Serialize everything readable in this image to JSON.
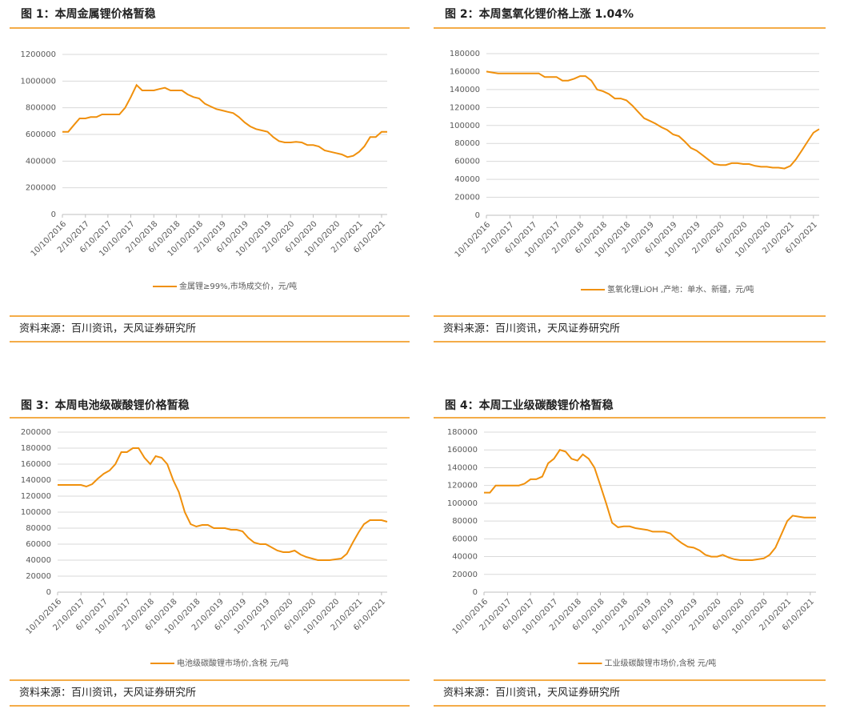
{
  "chart_data": [
    {
      "type": "line",
      "title": "图 1：本周金属锂价格暂稳",
      "source": "资料来源：百川资讯，天风证券研究所",
      "x": [
        "10/10/2016",
        "11/10/2016",
        "12/10/2016",
        "1/10/2017",
        "2/10/2017",
        "3/10/2017",
        "4/10/2017",
        "5/10/2017",
        "6/10/2017",
        "7/10/2017",
        "8/10/2017",
        "9/10/2017",
        "10/10/2017",
        "11/10/2017",
        "12/10/2017",
        "1/10/2018",
        "2/10/2018",
        "3/10/2018",
        "4/10/2018",
        "5/10/2018",
        "6/10/2018",
        "7/10/2018",
        "8/10/2018",
        "9/10/2018",
        "10/10/2018",
        "11/10/2018",
        "12/10/2018",
        "1/10/2019",
        "2/10/2019",
        "3/10/2019",
        "4/10/2019",
        "5/10/2019",
        "6/10/2019",
        "7/10/2019",
        "8/10/2019",
        "9/10/2019",
        "10/10/2019",
        "11/10/2019",
        "12/10/2019",
        "1/10/2020",
        "2/10/2020",
        "3/10/2020",
        "4/10/2020",
        "5/10/2020",
        "6/10/2020",
        "7/10/2020",
        "8/10/2020",
        "9/10/2020",
        "10/10/2020",
        "11/10/2020",
        "12/10/2020",
        "1/10/2021",
        "2/10/2021",
        "3/10/2021",
        "4/10/2021",
        "5/10/2021",
        "6/10/2021",
        "7/10/2021"
      ],
      "series": [
        {
          "name": "金属锂≥99%,市场成交价，元/吨",
          "color": "#f0900c",
          "values": [
            620000,
            620000,
            670000,
            720000,
            720000,
            730000,
            730000,
            750000,
            750000,
            750000,
            750000,
            800000,
            880000,
            970000,
            930000,
            930000,
            930000,
            940000,
            950000,
            930000,
            930000,
            930000,
            900000,
            880000,
            870000,
            830000,
            810000,
            790000,
            780000,
            770000,
            760000,
            730000,
            690000,
            660000,
            640000,
            630000,
            620000,
            580000,
            550000,
            540000,
            540000,
            545000,
            540000,
            520000,
            520000,
            510000,
            480000,
            470000,
            460000,
            450000,
            430000,
            440000,
            470000,
            510000,
            580000,
            580000,
            620000,
            620000
          ]
        }
      ],
      "xlim": [
        "10/10/2016",
        "7/10/2021"
      ],
      "xticks": [
        "10/10/2016",
        "2/10/2017",
        "6/10/2017",
        "10/10/2017",
        "2/10/2018",
        "6/10/2018",
        "10/10/2018",
        "2/10/2019",
        "6/10/2019",
        "10/10/2019",
        "2/10/2020",
        "6/10/2020",
        "10/10/2020",
        "2/10/2021",
        "6/10/2021"
      ],
      "ylim": [
        0,
        1200000
      ],
      "yticks": [
        0,
        200000,
        400000,
        600000,
        800000,
        1000000,
        1200000
      ],
      "grid": true
    },
    {
      "type": "line",
      "title": "图 2：本周氢氧化锂价格上涨 1.04%",
      "source": "资料来源：百川资讯，天风证券研究所",
      "x": [
        "10/10/2016",
        "11/10/2016",
        "12/10/2016",
        "1/10/2017",
        "2/10/2017",
        "3/10/2017",
        "4/10/2017",
        "5/10/2017",
        "6/10/2017",
        "7/10/2017",
        "8/10/2017",
        "9/10/2017",
        "10/10/2017",
        "11/10/2017",
        "12/10/2017",
        "1/10/2018",
        "2/10/2018",
        "3/10/2018",
        "4/10/2018",
        "5/10/2018",
        "6/10/2018",
        "7/10/2018",
        "8/10/2018",
        "9/10/2018",
        "10/10/2018",
        "11/10/2018",
        "12/10/2018",
        "1/10/2019",
        "2/10/2019",
        "3/10/2019",
        "4/10/2019",
        "5/10/2019",
        "6/10/2019",
        "7/10/2019",
        "8/10/2019",
        "9/10/2019",
        "10/10/2019",
        "11/10/2019",
        "12/10/2019",
        "1/10/2020",
        "2/10/2020",
        "3/10/2020",
        "4/10/2020",
        "5/10/2020",
        "6/10/2020",
        "7/10/2020",
        "8/10/2020",
        "9/10/2020",
        "10/10/2020",
        "11/10/2020",
        "12/10/2020",
        "1/10/2021",
        "2/10/2021",
        "3/10/2021",
        "4/10/2021",
        "5/10/2021",
        "6/10/2021",
        "7/10/2021"
      ],
      "series": [
        {
          "name": "氢氧化锂LiOH ,产地：单水、新疆，元/吨",
          "color": "#f0900c",
          "values": [
            160000,
            159000,
            158000,
            158000,
            158000,
            158000,
            158000,
            158000,
            158000,
            158000,
            154000,
            154000,
            154000,
            150000,
            150000,
            152000,
            155000,
            155000,
            150000,
            140000,
            138000,
            135000,
            130000,
            130000,
            128000,
            122000,
            115000,
            108000,
            105000,
            102000,
            98000,
            95000,
            90000,
            88000,
            82000,
            75000,
            72000,
            67000,
            62000,
            57000,
            56000,
            56000,
            58000,
            58000,
            57000,
            57000,
            55000,
            54000,
            54000,
            53000,
            53000,
            52000,
            55000,
            62000,
            72000,
            82000,
            92000,
            96000
          ]
        }
      ],
      "xlim": [
        "10/10/2016",
        "7/10/2021"
      ],
      "xticks": [
        "10/10/2016",
        "2/10/2017",
        "6/10/2017",
        "10/10/2017",
        "2/10/2018",
        "6/10/2018",
        "10/10/2018",
        "2/10/2019",
        "6/10/2019",
        "10/10/2019",
        "2/10/2020",
        "6/10/2020",
        "10/10/2020",
        "2/10/2021",
        "6/10/2021"
      ],
      "ylim": [
        0,
        180000
      ],
      "yticks": [
        0,
        20000,
        40000,
        60000,
        80000,
        100000,
        120000,
        140000,
        160000,
        180000
      ],
      "grid": true
    },
    {
      "type": "line",
      "title": "图 3：本周电池级碳酸锂价格暂稳",
      "source": "资料来源：百川资讯，天风证券研究所",
      "x": [
        "10/10/2016",
        "11/10/2016",
        "12/10/2016",
        "1/10/2017",
        "2/10/2017",
        "3/10/2017",
        "4/10/2017",
        "5/10/2017",
        "6/10/2017",
        "7/10/2017",
        "8/10/2017",
        "9/10/2017",
        "10/10/2017",
        "11/10/2017",
        "12/10/2017",
        "1/10/2018",
        "2/10/2018",
        "3/10/2018",
        "4/10/2018",
        "5/10/2018",
        "6/10/2018",
        "7/10/2018",
        "8/10/2018",
        "9/10/2018",
        "10/10/2018",
        "11/10/2018",
        "12/10/2018",
        "1/10/2019",
        "2/10/2019",
        "3/10/2019",
        "4/10/2019",
        "5/10/2019",
        "6/10/2019",
        "7/10/2019",
        "8/10/2019",
        "9/10/2019",
        "10/10/2019",
        "11/10/2019",
        "12/10/2019",
        "1/10/2020",
        "2/10/2020",
        "3/10/2020",
        "4/10/2020",
        "5/10/2020",
        "6/10/2020",
        "7/10/2020",
        "8/10/2020",
        "9/10/2020",
        "10/10/2020",
        "11/10/2020",
        "12/10/2020",
        "1/10/2021",
        "2/10/2021",
        "3/10/2021",
        "4/10/2021",
        "5/10/2021",
        "6/10/2021",
        "7/10/2021"
      ],
      "series": [
        {
          "name": "电池级碳酸锂市场价,含税 元/吨",
          "color": "#f0900c",
          "values": [
            134000,
            134000,
            134000,
            134000,
            134000,
            132000,
            135000,
            142000,
            148000,
            152000,
            160000,
            175000,
            175000,
            180000,
            180000,
            168000,
            160000,
            170000,
            168000,
            160000,
            140000,
            125000,
            100000,
            85000,
            82000,
            84000,
            84000,
            80000,
            80000,
            80000,
            78000,
            78000,
            76000,
            68000,
            62000,
            60000,
            60000,
            56000,
            52000,
            50000,
            50000,
            52000,
            47000,
            44000,
            42000,
            40000,
            40000,
            40000,
            41000,
            42000,
            48000,
            62000,
            75000,
            85000,
            90000,
            90000,
            90000,
            88000
          ]
        }
      ],
      "xlim": [
        "10/10/2016",
        "7/10/2021"
      ],
      "xticks": [
        "10/10/2016",
        "2/10/2017",
        "6/10/2017",
        "10/10/2017",
        "2/10/2018",
        "6/10/2018",
        "10/10/2018",
        "2/10/2019",
        "6/10/2019",
        "10/10/2019",
        "2/10/2020",
        "6/10/2020",
        "10/10/2020",
        "2/10/2021",
        "6/10/2021"
      ],
      "ylim": [
        0,
        200000
      ],
      "yticks": [
        0,
        20000,
        40000,
        60000,
        80000,
        100000,
        120000,
        140000,
        160000,
        180000,
        200000
      ],
      "grid": true
    },
    {
      "type": "line",
      "title": "图 4：本周工业级碳酸锂价格暂稳",
      "source": "资料来源：百川资讯，天风证券研究所",
      "x": [
        "10/10/2016",
        "11/10/2016",
        "12/10/2016",
        "1/10/2017",
        "2/10/2017",
        "3/10/2017",
        "4/10/2017",
        "5/10/2017",
        "6/10/2017",
        "7/10/2017",
        "8/10/2017",
        "9/10/2017",
        "10/10/2017",
        "11/10/2017",
        "12/10/2017",
        "1/10/2018",
        "2/10/2018",
        "3/10/2018",
        "4/10/2018",
        "5/10/2018",
        "6/10/2018",
        "7/10/2018",
        "8/10/2018",
        "9/10/2018",
        "10/10/2018",
        "11/10/2018",
        "12/10/2018",
        "1/10/2019",
        "2/10/2019",
        "3/10/2019",
        "4/10/2019",
        "5/10/2019",
        "6/10/2019",
        "7/10/2019",
        "8/10/2019",
        "9/10/2019",
        "10/10/2019",
        "11/10/2019",
        "12/10/2019",
        "1/10/2020",
        "2/10/2020",
        "3/10/2020",
        "4/10/2020",
        "5/10/2020",
        "6/10/2020",
        "7/10/2020",
        "8/10/2020",
        "9/10/2020",
        "10/10/2020",
        "11/10/2020",
        "12/10/2020",
        "1/10/2021",
        "2/10/2021",
        "3/10/2021",
        "4/10/2021",
        "5/10/2021",
        "6/10/2021",
        "7/10/2021"
      ],
      "series": [
        {
          "name": "工业级碳酸锂市场价,含税 元/吨",
          "color": "#f0900c",
          "values": [
            112000,
            112000,
            120000,
            120000,
            120000,
            120000,
            120000,
            122000,
            127000,
            127000,
            130000,
            145000,
            150000,
            160000,
            158000,
            150000,
            148000,
            155000,
            150000,
            140000,
            120000,
            100000,
            78000,
            73000,
            74000,
            74000,
            72000,
            71000,
            70000,
            68000,
            68000,
            68000,
            66000,
            60000,
            55000,
            51000,
            50000,
            47000,
            42000,
            40000,
            40000,
            42000,
            39000,
            37000,
            36000,
            36000,
            36000,
            37000,
            38000,
            42000,
            50000,
            65000,
            80000,
            86000,
            85000,
            84000,
            84000,
            84000
          ]
        }
      ],
      "xlim": [
        "10/10/2016",
        "7/10/2021"
      ],
      "xticks": [
        "10/10/2016",
        "2/10/2017",
        "6/10/2017",
        "10/10/2017",
        "2/10/2018",
        "6/10/2018",
        "10/10/2018",
        "2/10/2019",
        "6/10/2019",
        "10/10/2019",
        "2/10/2020",
        "6/10/2020",
        "10/10/2020",
        "2/10/2021",
        "6/10/2021"
      ],
      "ylim": [
        0,
        180000
      ],
      "yticks": [
        0,
        20000,
        40000,
        60000,
        80000,
        100000,
        120000,
        140000,
        160000,
        180000
      ],
      "grid": true
    }
  ]
}
